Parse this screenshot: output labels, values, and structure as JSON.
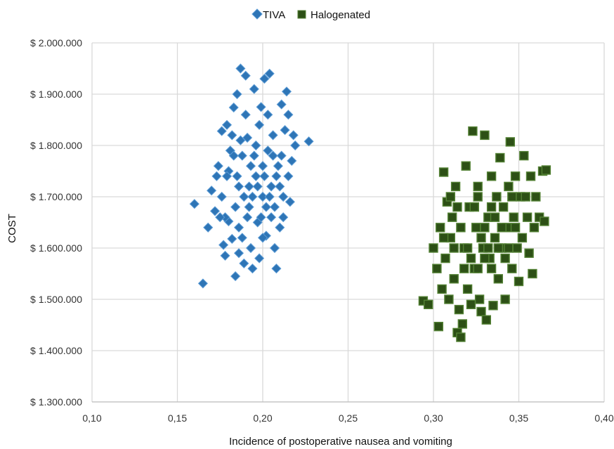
{
  "chart_data": {
    "type": "scatter",
    "xlabel": "Incidence of postoperative nausea and vomiting",
    "ylabel": "COST",
    "xlim": [
      0.1,
      0.4
    ],
    "ylim": [
      1300000,
      2000000
    ],
    "x_ticks": [
      0.1,
      0.15,
      0.2,
      0.25,
      0.3,
      0.35,
      0.4
    ],
    "x_tick_labels": [
      "0,10",
      "0,15",
      "0,20",
      "0,25",
      "0,30",
      "0,35",
      "0,40"
    ],
    "y_ticks": [
      1300000,
      1400000,
      1500000,
      1600000,
      1700000,
      1800000,
      1900000,
      2000000
    ],
    "y_tick_labels": [
      "$ 1.300.000",
      "$ 1.400.000",
      "$ 1.500.000",
      "$ 1.600.000",
      "$ 1.700.000",
      "$ 1.800.000",
      "$ 1.900.000",
      "$ 2.000.000"
    ],
    "grid": true,
    "legend_position": "top-center",
    "series": [
      {
        "name": "TIVA",
        "marker": "diamond",
        "color": "#2e75b6",
        "edge_color": "#5b9bd5",
        "points": [
          [
            0.165,
            1531000
          ],
          [
            0.16,
            1686000
          ],
          [
            0.168,
            1640000
          ],
          [
            0.17,
            1712000
          ],
          [
            0.172,
            1672000
          ],
          [
            0.174,
            1760000
          ],
          [
            0.176,
            1828000
          ],
          [
            0.177,
            1606000
          ],
          [
            0.178,
            1585000
          ],
          [
            0.179,
            1840000
          ],
          [
            0.18,
            1652000
          ],
          [
            0.181,
            1790000
          ],
          [
            0.182,
            1618000
          ],
          [
            0.183,
            1874000
          ],
          [
            0.184,
            1545000
          ],
          [
            0.185,
            1900000
          ],
          [
            0.186,
            1720000
          ],
          [
            0.187,
            1950000
          ],
          [
            0.188,
            1620000
          ],
          [
            0.189,
            1570000
          ],
          [
            0.19,
            1936000
          ],
          [
            0.191,
            1815000
          ],
          [
            0.192,
            1680000
          ],
          [
            0.193,
            1600000
          ],
          [
            0.194,
            1560000
          ],
          [
            0.195,
            1910000
          ],
          [
            0.196,
            1740000
          ],
          [
            0.197,
            1650000
          ],
          [
            0.198,
            1580000
          ],
          [
            0.199,
            1875000
          ],
          [
            0.2,
            1700000
          ],
          [
            0.201,
            1930000
          ],
          [
            0.202,
            1624000
          ],
          [
            0.203,
            1790000
          ],
          [
            0.204,
            1940000
          ],
          [
            0.205,
            1660000
          ],
          [
            0.206,
            1820000
          ],
          [
            0.207,
            1600000
          ],
          [
            0.208,
            1560000
          ],
          [
            0.209,
            1760000
          ],
          [
            0.21,
            1640000
          ],
          [
            0.211,
            1880000
          ],
          [
            0.212,
            1700000
          ],
          [
            0.213,
            1830000
          ],
          [
            0.214,
            1905000
          ],
          [
            0.215,
            1860000
          ],
          [
            0.216,
            1690000
          ],
          [
            0.217,
            1770000
          ],
          [
            0.218,
            1820000
          ],
          [
            0.219,
            1800000
          ],
          [
            0.227,
            1808000
          ],
          [
            0.176,
            1700000
          ],
          [
            0.18,
            1750000
          ],
          [
            0.184,
            1680000
          ],
          [
            0.188,
            1780000
          ],
          [
            0.192,
            1720000
          ],
          [
            0.196,
            1800000
          ],
          [
            0.2,
            1760000
          ],
          [
            0.204,
            1700000
          ],
          [
            0.208,
            1740000
          ],
          [
            0.178,
            1660000
          ],
          [
            0.182,
            1820000
          ],
          [
            0.186,
            1640000
          ],
          [
            0.19,
            1860000
          ],
          [
            0.194,
            1700000
          ],
          [
            0.198,
            1840000
          ],
          [
            0.202,
            1680000
          ],
          [
            0.206,
            1780000
          ],
          [
            0.21,
            1720000
          ],
          [
            0.212,
            1660000
          ],
          [
            0.185,
            1740000
          ],
          [
            0.189,
            1700000
          ],
          [
            0.193,
            1760000
          ],
          [
            0.197,
            1720000
          ],
          [
            0.201,
            1740000
          ],
          [
            0.205,
            1720000
          ],
          [
            0.187,
            1810000
          ],
          [
            0.191,
            1660000
          ],
          [
            0.195,
            1780000
          ],
          [
            0.199,
            1660000
          ],
          [
            0.203,
            1860000
          ],
          [
            0.207,
            1680000
          ],
          [
            0.183,
            1780000
          ],
          [
            0.179,
            1740000
          ],
          [
            0.215,
            1740000
          ],
          [
            0.211,
            1780000
          ],
          [
            0.173,
            1740000
          ],
          [
            0.175,
            1660000
          ],
          [
            0.186,
            1590000
          ],
          [
            0.2,
            1620000
          ]
        ]
      },
      {
        "name": "Halogenated",
        "marker": "square",
        "color": "#2d5016",
        "edge_color": "#548235",
        "points": [
          [
            0.294,
            1497000
          ],
          [
            0.297,
            1490000
          ],
          [
            0.3,
            1600000
          ],
          [
            0.302,
            1560000
          ],
          [
            0.303,
            1447000
          ],
          [
            0.304,
            1640000
          ],
          [
            0.305,
            1520000
          ],
          [
            0.306,
            1748000
          ],
          [
            0.307,
            1580000
          ],
          [
            0.308,
            1690000
          ],
          [
            0.309,
            1500000
          ],
          [
            0.31,
            1620000
          ],
          [
            0.311,
            1660000
          ],
          [
            0.312,
            1540000
          ],
          [
            0.313,
            1720000
          ],
          [
            0.314,
            1435000
          ],
          [
            0.315,
            1480000
          ],
          [
            0.316,
            1426000
          ],
          [
            0.317,
            1452000
          ],
          [
            0.318,
            1600000
          ],
          [
            0.319,
            1760000
          ],
          [
            0.32,
            1520000
          ],
          [
            0.321,
            1680000
          ],
          [
            0.322,
            1490000
          ],
          [
            0.323,
            1828000
          ],
          [
            0.324,
            1560000
          ],
          [
            0.325,
            1640000
          ],
          [
            0.326,
            1720000
          ],
          [
            0.327,
            1500000
          ],
          [
            0.328,
            1476000
          ],
          [
            0.329,
            1600000
          ],
          [
            0.33,
            1820000
          ],
          [
            0.331,
            1460000
          ],
          [
            0.332,
            1660000
          ],
          [
            0.333,
            1580000
          ],
          [
            0.334,
            1740000
          ],
          [
            0.335,
            1488000
          ],
          [
            0.336,
            1620000
          ],
          [
            0.337,
            1700000
          ],
          [
            0.338,
            1540000
          ],
          [
            0.339,
            1776000
          ],
          [
            0.34,
            1600000
          ],
          [
            0.341,
            1680000
          ],
          [
            0.342,
            1500000
          ],
          [
            0.343,
            1640000
          ],
          [
            0.344,
            1720000
          ],
          [
            0.345,
            1807000
          ],
          [
            0.346,
            1560000
          ],
          [
            0.347,
            1660000
          ],
          [
            0.348,
            1740000
          ],
          [
            0.349,
            1600000
          ],
          [
            0.35,
            1535000
          ],
          [
            0.351,
            1700000
          ],
          [
            0.352,
            1620000
          ],
          [
            0.353,
            1780000
          ],
          [
            0.355,
            1660000
          ],
          [
            0.356,
            1590000
          ],
          [
            0.357,
            1740000
          ],
          [
            0.358,
            1550000
          ],
          [
            0.359,
            1640000
          ],
          [
            0.36,
            1700000
          ],
          [
            0.362,
            1660000
          ],
          [
            0.364,
            1750000
          ],
          [
            0.365,
            1652000
          ],
          [
            0.366,
            1752000
          ],
          [
            0.312,
            1600000
          ],
          [
            0.316,
            1640000
          ],
          [
            0.32,
            1600000
          ],
          [
            0.324,
            1680000
          ],
          [
            0.328,
            1620000
          ],
          [
            0.332,
            1600000
          ],
          [
            0.336,
            1660000
          ],
          [
            0.34,
            1640000
          ],
          [
            0.344,
            1600000
          ],
          [
            0.348,
            1640000
          ],
          [
            0.318,
            1560000
          ],
          [
            0.322,
            1580000
          ],
          [
            0.326,
            1560000
          ],
          [
            0.33,
            1580000
          ],
          [
            0.334,
            1560000
          ],
          [
            0.338,
            1600000
          ],
          [
            0.342,
            1580000
          ],
          [
            0.314,
            1680000
          ],
          [
            0.326,
            1700000
          ],
          [
            0.334,
            1680000
          ],
          [
            0.306,
            1620000
          ],
          [
            0.31,
            1700000
          ],
          [
            0.354,
            1700000
          ],
          [
            0.346,
            1700000
          ],
          [
            0.33,
            1640000
          ]
        ]
      }
    ]
  }
}
